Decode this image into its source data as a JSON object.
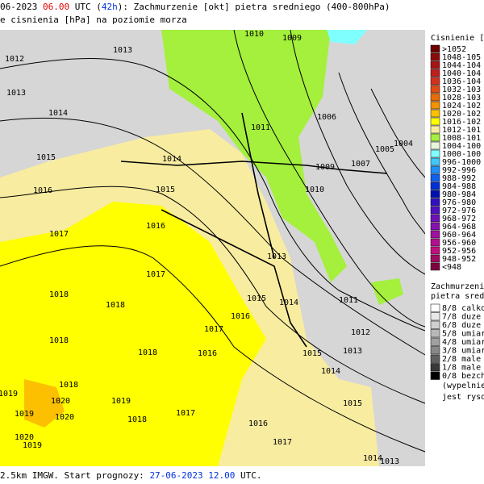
{
  "header": {
    "line1": [
      {
        "text": "06-2023 ",
        "color": "#000000"
      },
      {
        "text": "06.00",
        "color": "#e00000"
      },
      {
        "text": " UTC (",
        "color": "#000000"
      },
      {
        "text": "42h",
        "color": "#0030e0"
      },
      {
        "text": "): Zachmurzenie [okt] pietra sredniego (400-800hPa)",
        "color": "#000000"
      }
    ],
    "line2": "e cisnienia [hPa] na poziomie morza"
  },
  "footer": [
    {
      "text": "2.5km IMGW. Start prognozy: ",
      "color": "#000000"
    },
    {
      "text": "27-06-2023",
      "color": "#0030e0"
    },
    {
      "text": " ",
      "color": "#000000"
    },
    {
      "text": "12.00",
      "color": "#0030e0"
    },
    {
      "text": " UTC.",
      "color": "#000000"
    }
  ],
  "pressure_legend": {
    "title": "Cisnienie [hP",
    "entries": [
      {
        "label": ">1052",
        "color": "#6e0000"
      },
      {
        "label": "1048-105",
        "color": "#8c0a0a"
      },
      {
        "label": "1044-104",
        "color": "#a81414"
      },
      {
        "label": "1040-104",
        "color": "#c01e1e"
      },
      {
        "label": "1036-104",
        "color": "#d43020"
      },
      {
        "label": "1032-103",
        "color": "#e04c14"
      },
      {
        "label": "1028-103",
        "color": "#ea6c00"
      },
      {
        "label": "1024-102",
        "color": "#f49200"
      },
      {
        "label": "1020-102",
        "color": "#fcc000"
      },
      {
        "label": "1016-102",
        "color": "#ffff00"
      },
      {
        "label": "1012-101",
        "color": "#f8eca0"
      },
      {
        "label": "1008-101",
        "color": "#a4f03c"
      },
      {
        "label": "1004-100",
        "color": "#e6f6d8"
      },
      {
        "label": "1000-100",
        "color": "#80ffff"
      },
      {
        "label": "996-1000",
        "color": "#40c8ff"
      },
      {
        "label": "992-996",
        "color": "#2090ff"
      },
      {
        "label": "988-992",
        "color": "#1060f0"
      },
      {
        "label": "984-988",
        "color": "#0030d8"
      },
      {
        "label": "980-984",
        "color": "#0010b0"
      },
      {
        "label": "976-980",
        "color": "#3010c0"
      },
      {
        "label": "972-976",
        "color": "#5010c0"
      },
      {
        "label": "968-972",
        "color": "#7010b8"
      },
      {
        "label": "964-968",
        "color": "#8810b0"
      },
      {
        "label": "960-964",
        "color": "#a010a0"
      },
      {
        "label": "956-960",
        "color": "#b01090"
      },
      {
        "label": "952-956",
        "color": "#c01080"
      },
      {
        "label": "948-952",
        "color": "#a00a60"
      },
      {
        "label": "<948",
        "color": "#800040"
      }
    ]
  },
  "cloud_legend": {
    "title": [
      "Zachmurzenie",
      "pietra sredni"
    ],
    "entries": [
      {
        "label": "8/8 calkow",
        "color": "#ffffff"
      },
      {
        "label": "7/8 duze",
        "color": "#e8e8e8"
      },
      {
        "label": "6/8 duze",
        "color": "#d0d0d0"
      },
      {
        "label": "5/8 umiar",
        "color": "#b8b8b8"
      },
      {
        "label": "4/8 umiar",
        "color": "#a0a0a0"
      },
      {
        "label": "3/8 umiar",
        "color": "#888888"
      },
      {
        "label": "2/8 male",
        "color": "#606060"
      },
      {
        "label": "1/8 male",
        "color": "#383838"
      },
      {
        "label": "0/8 bezch",
        "color": "#000000"
      }
    ],
    "notes": [
      "(wypelnieni",
      "jest rysowa"
    ]
  },
  "isobar_labels": [
    "1010",
    "1009",
    "1012",
    "1013",
    "1013",
    "1014",
    "1011",
    "1006",
    "1005",
    "1004",
    "1015",
    "1014",
    "1009",
    "1007",
    "1016",
    "1015",
    "1010",
    "1016",
    "1017",
    "1013",
    "1017",
    "1018",
    "1018",
    "1015",
    "1014",
    "1011",
    "1016",
    "1017",
    "1012",
    "1018",
    "1018",
    "1016",
    "1015",
    "1013",
    "1014",
    "1019",
    "1018",
    "1020",
    "1019",
    "1017",
    "1015",
    "1019",
    "1020",
    "1018",
    "1016",
    "1020",
    "1017",
    "1014",
    "1013",
    "1019"
  ]
}
